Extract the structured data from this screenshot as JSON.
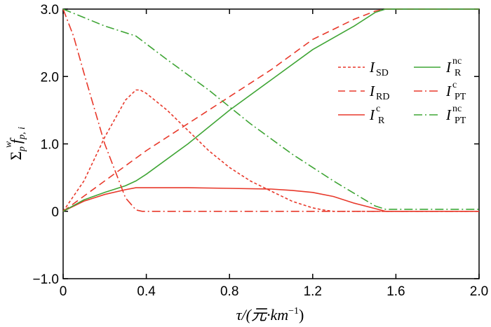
{
  "chart_data": {
    "type": "line",
    "title": "",
    "xlabel": {
      "main": "τ/(元·km",
      "sup": "−1",
      "close": ")"
    },
    "ylabel": {
      "sigma": "Σ",
      "sigma_sub": "p",
      "f": "f",
      "f_sub": "p, i",
      "f_sup": "w"
    },
    "xlim": [
      0,
      2.0
    ],
    "ylim": [
      -1.0,
      3.0
    ],
    "xticks": [
      "0",
      "0.4",
      "0.8",
      "1.2",
      "1.6",
      "2.0"
    ],
    "xtick_values": [
      0,
      0.4,
      0.8,
      1.2,
      1.6,
      2.0
    ],
    "yticks": [
      "−1.0",
      "0",
      "1.0",
      "2.0",
      "3.0"
    ],
    "ytick_values": [
      -1.0,
      0,
      1.0,
      2.0,
      3.0
    ],
    "grid": false,
    "legend_position": "top-right",
    "series": [
      {
        "name": "I_SD",
        "label": "I",
        "sub": "SD",
        "sup": "",
        "color": "#e8392b",
        "dash": "4,3",
        "x": [
          0,
          0.1,
          0.2,
          0.3,
          0.35,
          0.37,
          0.4,
          0.5,
          0.6,
          0.7,
          0.8,
          0.9,
          1.0,
          1.1,
          1.2,
          1.25,
          1.3,
          1.5,
          2.0
        ],
        "y": [
          0.0,
          0.45,
          1.1,
          1.65,
          1.8,
          1.8,
          1.75,
          1.5,
          1.2,
          0.9,
          0.65,
          0.45,
          0.3,
          0.15,
          0.05,
          0.02,
          0.0,
          0.0,
          0.0
        ]
      },
      {
        "name": "I_RD",
        "label": "I",
        "sub": "RD",
        "sup": "",
        "color": "#e8392b",
        "dash": "10,6",
        "x": [
          0,
          0.2,
          0.4,
          0.6,
          0.8,
          1.0,
          1.2,
          1.4,
          1.5,
          1.55,
          2.0
        ],
        "y": [
          0.0,
          0.45,
          0.9,
          1.3,
          1.7,
          2.1,
          2.55,
          2.85,
          2.97,
          3.0,
          3.0
        ]
      },
      {
        "name": "I_R^c",
        "label": "I",
        "sub": "R",
        "sup": "c",
        "color": "#e8392b",
        "dash": "",
        "x": [
          0,
          0.1,
          0.2,
          0.3,
          0.35,
          0.4,
          0.6,
          0.8,
          1.0,
          1.1,
          1.2,
          1.3,
          1.4,
          1.5,
          1.55,
          2.0
        ],
        "y": [
          0.0,
          0.15,
          0.25,
          0.32,
          0.35,
          0.35,
          0.35,
          0.34,
          0.33,
          0.31,
          0.28,
          0.22,
          0.12,
          0.04,
          0.0,
          0.0
        ]
      },
      {
        "name": "I_R^nc",
        "label": "I",
        "sub": "R",
        "sup": "nc",
        "color": "#3fa535",
        "dash": "",
        "x": [
          0,
          0.1,
          0.2,
          0.3,
          0.35,
          0.4,
          0.6,
          0.8,
          1.0,
          1.2,
          1.4,
          1.5,
          1.55,
          2.0
        ],
        "y": [
          0.0,
          0.17,
          0.28,
          0.38,
          0.45,
          0.55,
          1.0,
          1.5,
          1.95,
          2.4,
          2.75,
          2.95,
          3.0,
          3.0
        ]
      },
      {
        "name": "I_PT^c",
        "label": "I",
        "sub": "PT",
        "sup": "c",
        "color": "#e8392b",
        "dash": "12,4,2,4",
        "x": [
          0,
          0.05,
          0.1,
          0.2,
          0.3,
          0.35,
          0.38,
          2.0
        ],
        "y": [
          3.0,
          2.6,
          2.05,
          1.0,
          0.2,
          0.02,
          0.0,
          0.0
        ]
      },
      {
        "name": "I_PT^nc",
        "label": "I",
        "sub": "PT",
        "sup": "nc",
        "color": "#3fa535",
        "dash": "12,4,2,4",
        "x": [
          0,
          0.2,
          0.35,
          0.5,
          0.7,
          0.9,
          1.1,
          1.3,
          1.5,
          1.55,
          2.0
        ],
        "y": [
          3.0,
          2.75,
          2.6,
          2.25,
          1.8,
          1.3,
          0.85,
          0.45,
          0.08,
          0.03,
          0.03
        ]
      }
    ]
  }
}
